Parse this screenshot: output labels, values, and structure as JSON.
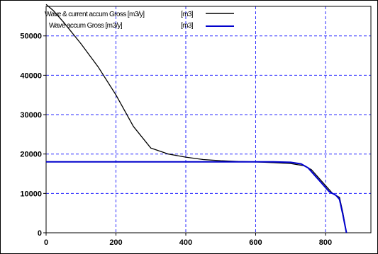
{
  "chart_data": {
    "type": "line",
    "title": "",
    "xlabel": "",
    "ylabel": "",
    "xlim": [
      0,
      930
    ],
    "ylim": [
      0,
      57500
    ],
    "xticks": [
      0,
      200,
      400,
      600,
      800
    ],
    "yticks": [
      0,
      10000,
      20000,
      30000,
      40000,
      50000
    ],
    "grid": true,
    "legend_position": "top-left",
    "series": [
      {
        "name": "Wave & current accum Gross [m3/y] [m3]",
        "color": "#000000",
        "x": [
          0,
          20,
          50,
          100,
          150,
          200,
          250,
          300,
          350,
          400,
          450,
          500,
          550,
          600,
          650,
          700,
          740,
          760,
          780,
          800,
          820,
          840,
          850,
          860
        ],
        "y": [
          58000,
          56500,
          53500,
          48000,
          42000,
          35000,
          27000,
          21500,
          20000,
          19200,
          18600,
          18300,
          18100,
          18000,
          17800,
          17600,
          17000,
          16000,
          14000,
          12000,
          10000,
          9000,
          5000,
          0
        ]
      },
      {
        "name": "Wave accum Gross [m3/y] [m3]",
        "color": "#0000cc",
        "x": [
          0,
          100,
          200,
          300,
          400,
          500,
          600,
          650,
          700,
          730,
          750,
          770,
          790,
          810,
          830,
          840,
          850,
          860
        ],
        "y": [
          18000,
          18000,
          18000,
          18000,
          18000,
          18000,
          18000,
          18000,
          17900,
          17500,
          16500,
          14500,
          12500,
          10500,
          9500,
          8500,
          4500,
          0
        ]
      }
    ]
  },
  "legend": {
    "items": [
      {
        "label_a": "Wave & current accum Gross [m3/y]",
        "label_b": "[m3]",
        "color": "#000000"
      },
      {
        "label_a": "Wave accum Gross [m3/y]",
        "label_b": "[m3]",
        "color": "#0000cc"
      }
    ]
  }
}
